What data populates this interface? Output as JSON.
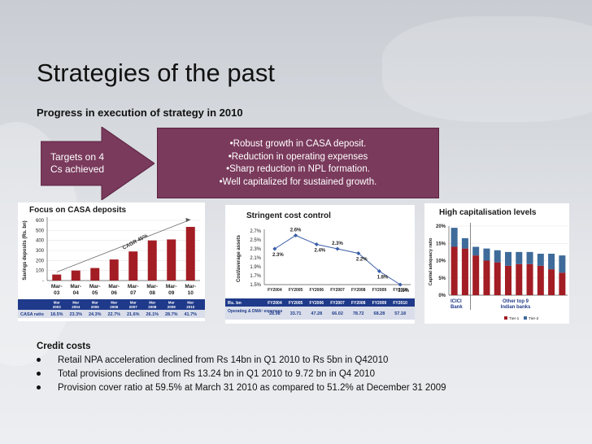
{
  "slide": {
    "title": "Strategies of the past",
    "subtitle": "Progress in execution of strategy in 2010"
  },
  "arrow": {
    "line1": "Targets on 4",
    "line2": "Cs achieved"
  },
  "highlights": [
    "•Robust growth in  CASA deposit.",
    "•Reduction in operating expenses",
    "•Sharp reduction in NPL formation.",
    "•Well capitalized for sustained growth."
  ],
  "chart_data": [
    {
      "type": "bar",
      "title": "Focus on CASA deposits",
      "ylabel": "Savings deposits (Rs. bn)",
      "ylim": [
        0,
        600
      ],
      "yticks": [
        "600",
        "500",
        "400",
        "300",
        "200",
        "100",
        "-"
      ],
      "categories": [
        "Mar-03",
        "Mar-04",
        "Mar-05",
        "Mar-06",
        "Mar-07",
        "Mar-08",
        "Mar-09",
        "Mar-10"
      ],
      "category_top": [
        "Mar-",
        "Mar-",
        "Mar-",
        "Mar-",
        "Mar-",
        "Mar-",
        "Mar-",
        "Mar-"
      ],
      "category_bottom": [
        "03",
        "04",
        "05",
        "06",
        "07",
        "08",
        "09",
        "10"
      ],
      "values": [
        60,
        100,
        125,
        210,
        290,
        400,
        410,
        535
      ],
      "annotation": "CAGR 45%",
      "table_label": "CASA ratio",
      "table_headers": [
        "Mar 2003",
        "Mar 2004",
        "Mar 2005",
        "Mar 2006",
        "Mar 2007",
        "Mar 2008",
        "Mar 2009",
        "Mar 2010"
      ],
      "table_values": [
        "18.5%",
        "23.3%",
        "24.3%",
        "22.7%",
        "21.6%",
        "26.1%",
        "28.7%",
        "41.7%"
      ],
      "colors": {
        "bar": "#a31d24",
        "header": "#1f3a8a"
      }
    },
    {
      "type": "line",
      "title": "Stringent cost control",
      "ylabel": "Cost/average assets",
      "ylim": [
        1.5,
        2.7
      ],
      "yticks": [
        "2.7%",
        "2.5%",
        "2.3%",
        "2.1%",
        "1.9%",
        "1.7%",
        "1.5%"
      ],
      "categories": [
        "FY2004",
        "FY2005",
        "FY2006",
        "FY2007",
        "FY2008",
        "FY2009",
        "FY2010"
      ],
      "values": [
        2.3,
        2.6,
        2.4,
        2.3,
        2.2,
        1.8,
        1.5
      ],
      "data_labels": [
        "2.3%",
        "2.6%",
        "2.4%",
        "2.3%",
        "2.2%",
        "1.8%",
        "1.5%"
      ],
      "table_header_label": "Rs. bn",
      "table_row_label": "Operating & DMA¹ expenses",
      "table_values": [
        "28.98",
        "33.71",
        "47.28",
        "66.02",
        "78.72",
        "68.28",
        "57.18"
      ],
      "colors": {
        "line": "#3a5ea8",
        "header": "#1f3a8a"
      }
    },
    {
      "type": "bar",
      "title": "High capitalisation levels",
      "ylabel": "Capital adequacy ratio",
      "ylim": [
        0,
        20
      ],
      "yticks": [
        "20%",
        "15%",
        "10%",
        "5%",
        "0%"
      ],
      "group_labels": [
        "ICICI Bank",
        "Other top 9 Indian banks"
      ],
      "series": [
        {
          "name": "Tier-1",
          "values": [
            14,
            13.5,
            11.5,
            10,
            9.5,
            8.5,
            9,
            9,
            8.5,
            7.5,
            6.5
          ]
        },
        {
          "name": "Tier-2",
          "values": [
            5.5,
            3,
            2.5,
            3.5,
            3.5,
            4,
            3.5,
            3.5,
            3.5,
            4.5,
            5
          ]
        }
      ],
      "colors": {
        "tier1": "#a31d24",
        "tier2": "#3f6b9a"
      }
    }
  ],
  "credit": {
    "title": "Credit costs",
    "items": [
      "Retail NPA acceleration declined from Rs 14bn in Q1 2010 to Rs 5bn in Q42010",
      "Total provisions declined from  Rs 13.24 bn in Q1 2010 to 9.72 bn in Q4 2010",
      "Provision cover ratio at 59.5% at March 31 2010 as compared to 51.2% at December 31 2009"
    ]
  }
}
